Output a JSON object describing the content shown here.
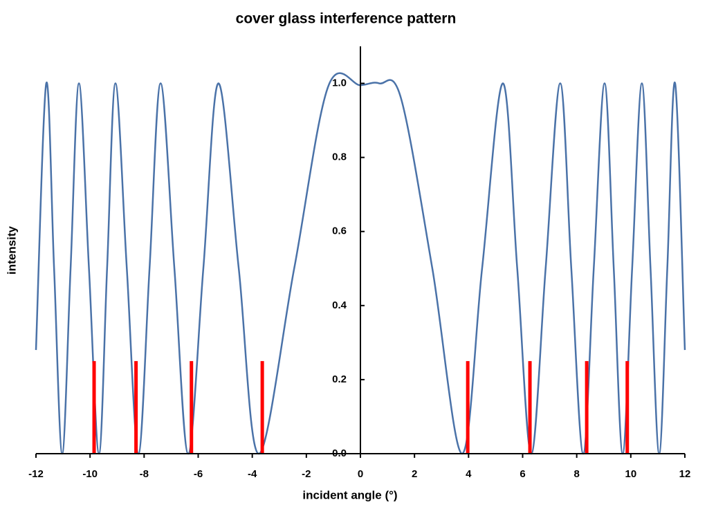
{
  "chart_data": {
    "type": "line",
    "title": "cover glass interference pattern",
    "x_label": "incident angle  (°)",
    "y_label": "intensity",
    "xlim": [
      -12,
      12
    ],
    "ylim": [
      0,
      1.1
    ],
    "xticks": [
      -12,
      -10,
      -8,
      -6,
      -4,
      -2,
      0,
      2,
      4,
      6,
      8,
      10,
      12
    ],
    "yticks": [
      {
        "value": 0,
        "label": "0.0"
      },
      0.2,
      0.4,
      0.6,
      0.8,
      {
        "value": 1,
        "label": "1.0"
      }
    ],
    "line": {
      "color": "#4a72a8",
      "x": [
        -12,
        -11.62,
        -11.33,
        -11.03,
        -10.72,
        -10.41,
        -10.04,
        -9.67,
        -9.37,
        -9.06,
        -8.64,
        -8.21,
        -7.8,
        -7.39,
        -6.88,
        -6.37,
        -5.81,
        -5.25,
        -4.5,
        -3.76,
        -2.45,
        -1.2,
        0,
        0.7,
        1.5,
        2.66,
        3.76,
        4.5,
        5.27,
        5.8,
        6.32,
        6.85,
        7.39,
        7.8,
        8.24,
        8.63,
        9.03,
        9.37,
        9.7,
        10.05,
        10.41,
        10.73,
        11.05,
        11.35,
        11.64,
        12
      ],
      "values": [
        0.28,
        1,
        0.5,
        0,
        0.5,
        1,
        0.5,
        0,
        0.5,
        1,
        0.5,
        0,
        0.5,
        1,
        0.5,
        0,
        0.5,
        1,
        0.5,
        0,
        0.5,
        0.99,
        0.995,
        1,
        0.96,
        0.5,
        0,
        0.5,
        1,
        0.5,
        0,
        0.5,
        1,
        0.5,
        0,
        0.5,
        1,
        0.5,
        0,
        0.5,
        1,
        0.5,
        0,
        0.5,
        1,
        0.28
      ]
    },
    "markers": {
      "color": "#ff0000",
      "x": [
        -9.85,
        -8.3,
        -6.25,
        -3.63,
        3.97,
        6.27,
        8.37,
        9.87
      ],
      "values": [
        0.25,
        0.25,
        0.25,
        0.25,
        0.25,
        0.25,
        0.25,
        0.25
      ]
    }
  }
}
